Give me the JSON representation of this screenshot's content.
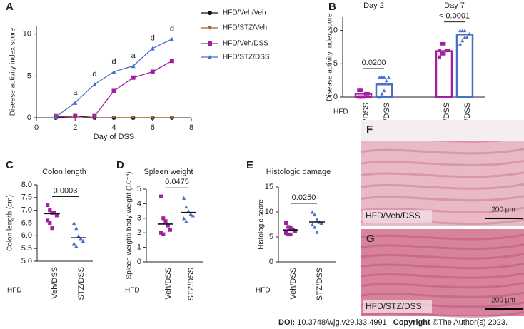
{
  "chart_data": [
    {
      "type": "line",
      "panel": "A",
      "x_label": "Day of DSS",
      "y_label": "Disease activity index score",
      "x": [
        1,
        2,
        3,
        4,
        5,
        6,
        7
      ],
      "xlim": [
        0,
        8
      ],
      "xticks": [
        0,
        2,
        4,
        6,
        8
      ],
      "ylim": [
        0,
        11
      ],
      "yticks": [
        0,
        5,
        10
      ],
      "series": [
        {
          "name": "HFD/Veh/Veh",
          "color": "#111111",
          "values": [
            0,
            0.2,
            0,
            0,
            0,
            0,
            0
          ]
        },
        {
          "name": "HFD/STZ/Veh",
          "color": "#a0652a",
          "values": [
            0.2,
            0,
            0,
            0,
            0,
            0,
            0
          ]
        },
        {
          "name": "HFD/Veh/DSS",
          "color": "#a020a0",
          "values": [
            0.1,
            0.2,
            0.2,
            3.2,
            4.8,
            5.5,
            6.8
          ]
        },
        {
          "name": "HFD/STZ/DSS",
          "color": "#4a6fc9",
          "values": [
            0.1,
            1.8,
            4.0,
            5.5,
            6.2,
            8.3,
            9.4
          ]
        }
      ],
      "annotations": [
        "a",
        "d",
        "d",
        "a",
        "d",
        "d"
      ]
    },
    {
      "type": "bar",
      "panel": "B",
      "y_label": "Disease activity index score",
      "row_label": "HFD",
      "groups": [
        "Day 2",
        "Day 7"
      ],
      "categories": [
        "Veh/DSS",
        "STZ/DSS",
        "Veh/DSS",
        "STZ/DSS"
      ],
      "colors": [
        "#a020a0",
        "#4a6fc9",
        "#a020a0",
        "#4a6fc9"
      ],
      "values": [
        0.5,
        1.9,
        6.9,
        9.4
      ],
      "points": [
        [
          0,
          0,
          0,
          0.5,
          0.5,
          1,
          1
        ],
        [
          0,
          0.5,
          1,
          2.5,
          3,
          3,
          3,
          3
        ],
        [
          6,
          6.5,
          6.5,
          7,
          7,
          7,
          8,
          8
        ],
        [
          8,
          8.5,
          9,
          9,
          9.5,
          10,
          10,
          10
        ]
      ],
      "ylim": [
        0,
        12
      ],
      "yticks": [
        0,
        5,
        10
      ],
      "p_values": [
        "0.0200",
        "< 0.0001"
      ]
    },
    {
      "type": "dot",
      "panel": "C",
      "title": "Colon length",
      "y_label": "Colon length (cm)",
      "row_label": "HFD",
      "categories": [
        "Veh/DSS",
        "STZ/DSS"
      ],
      "colors": [
        "#a020a0",
        "#4a6fc9"
      ],
      "points": [
        [
          7.2,
          7.0,
          6.9,
          6.9,
          6.8,
          6.6,
          6.5,
          6.3
        ],
        [
          6.5,
          6.3,
          6.0,
          5.9,
          5.8,
          5.7,
          5.6
        ]
      ],
      "means": [
        6.87,
        5.92
      ],
      "ylim": [
        5,
        8
      ],
      "yticks": [
        {
          "value": 5,
          "label": "5.0"
        },
        5.5,
        {
          "value": 6,
          "label": "6.0"
        },
        6.5,
        {
          "value": 7,
          "label": "7.0"
        },
        7.5,
        {
          "value": 8,
          "label": "8.0"
        }
      ],
      "p_values": [
        "0.0003"
      ]
    },
    {
      "type": "dot",
      "panel": "D",
      "title": "Spleen weight",
      "y_label": "Spleen weight/ body weight (10⁻³)",
      "row_label": "HFD",
      "categories": [
        "Veh/DSS",
        "STZ/DSS"
      ],
      "colors": [
        "#a020a0",
        "#4a6fc9"
      ],
      "points": [
        [
          4.5,
          3.0,
          2.8,
          2.5,
          2.2,
          2.0,
          1.9
        ],
        [
          4.4,
          3.8,
          3.5,
          3.3,
          3.2,
          3.0,
          2.8
        ]
      ],
      "means": [
        2.6,
        3.4
      ],
      "ylim": [
        0,
        5
      ],
      "yticks": [
        0,
        1,
        2,
        3,
        4,
        5
      ],
      "p_values": [
        "0.0475"
      ]
    },
    {
      "type": "dot",
      "panel": "E",
      "title": "Histologic damage",
      "y_label": "Histologic score",
      "row_label": "HFD",
      "categories": [
        "Veh/DSS",
        "STZ/DSS"
      ],
      "colors": [
        "#a020a0",
        "#4a6fc9"
      ],
      "points": [
        [
          7.8,
          7.0,
          6.8,
          6.5,
          6.2,
          5.8,
          5.5,
          5.5
        ],
        [
          10.0,
          9.5,
          8.5,
          8.0,
          7.8,
          7.5,
          7.0,
          6.0
        ]
      ],
      "means": [
        6.4,
        8.0
      ],
      "ylim": [
        0,
        15
      ],
      "yticks": [
        0,
        5,
        10,
        15
      ],
      "p_values": [
        "0.0250"
      ]
    }
  ],
  "images": [
    {
      "panel": "F",
      "label": "HFD/Veh/DSS",
      "scale": "200 µm"
    },
    {
      "panel": "G",
      "label": "HFD/STZ/DSS",
      "scale": "200 µm"
    }
  ],
  "footer": {
    "doi": "DOI:",
    "doi_value": "10.3748/wjg.v29.i33.4991",
    "copyright": "Copyright",
    "holder": "©The Author(s) 2023."
  }
}
